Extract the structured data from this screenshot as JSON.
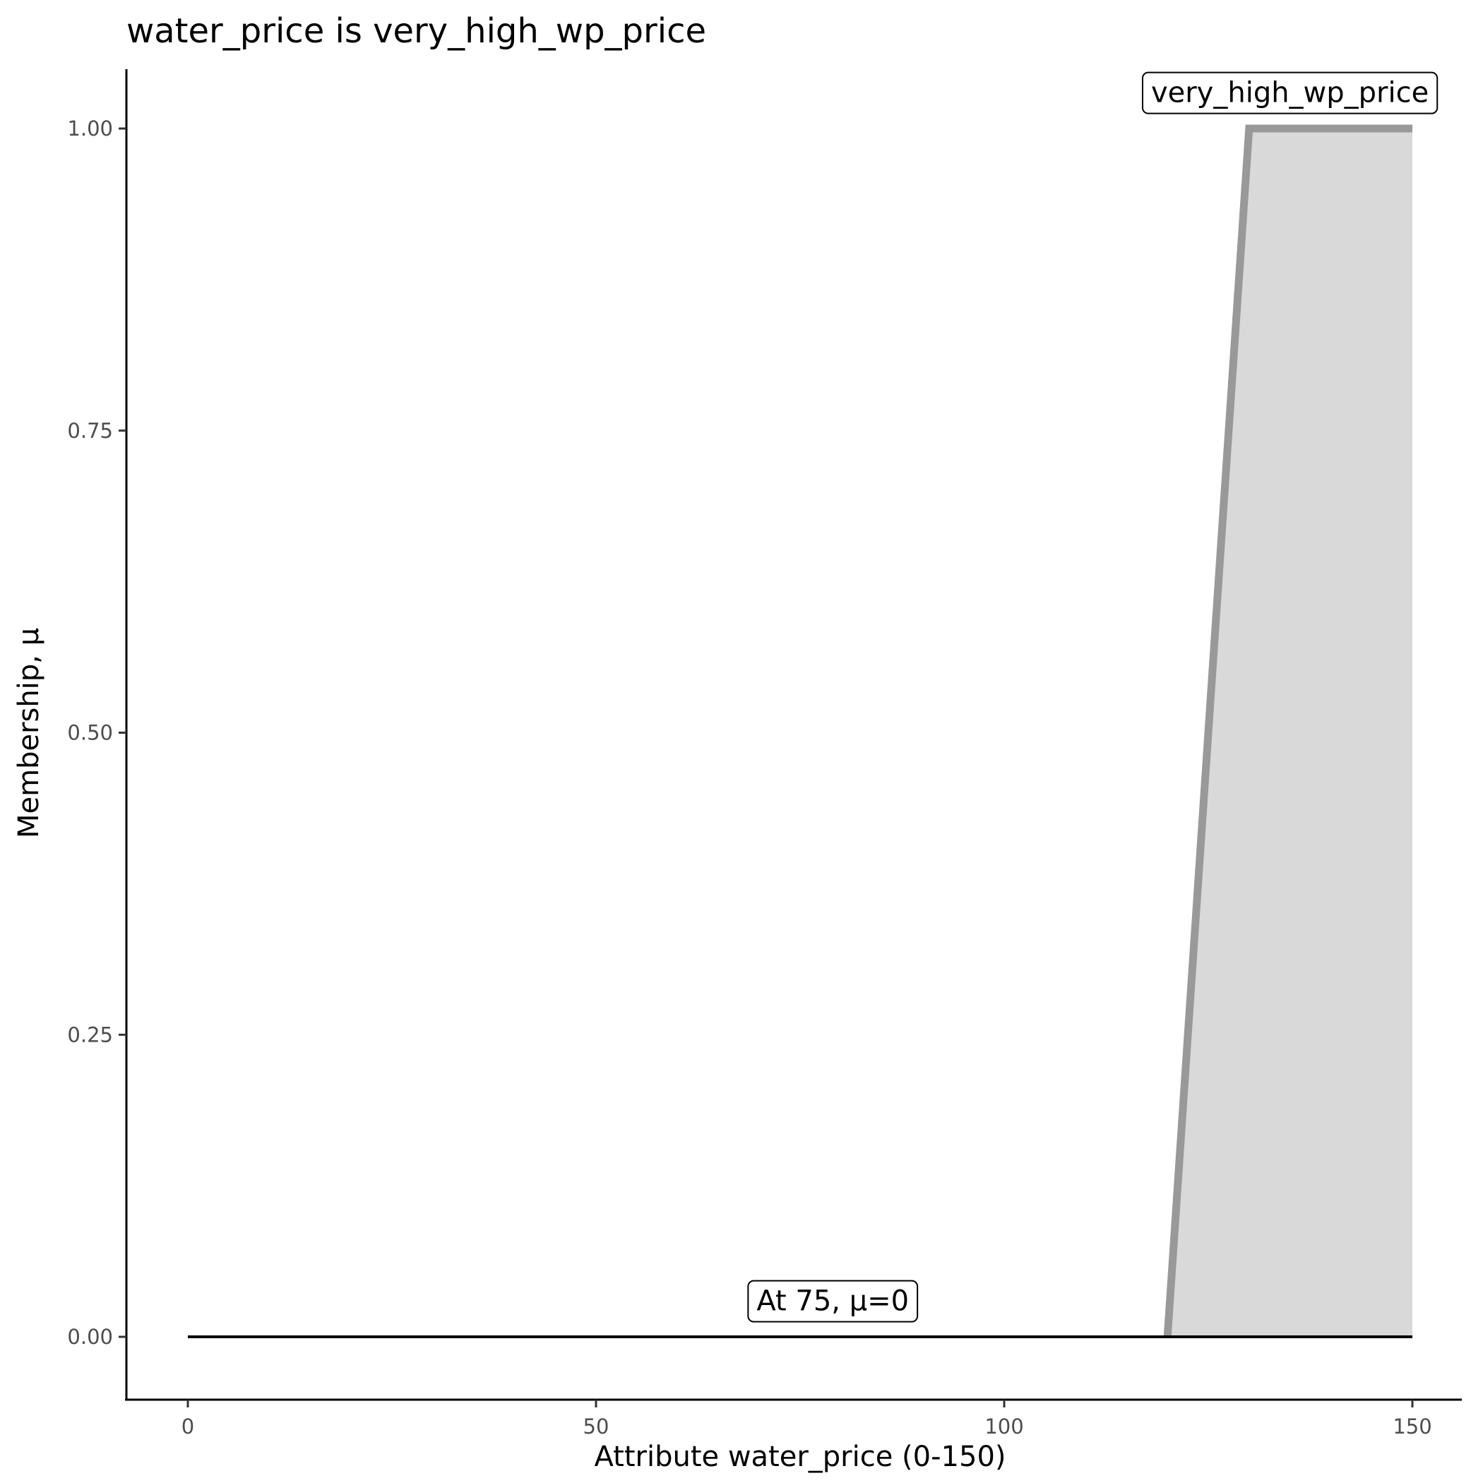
{
  "chart_data": {
    "type": "area",
    "title": "water_price is very_high_wp_price",
    "xlabel": "Attribute water_price (0-150)",
    "ylabel": "Membership, μ",
    "xlim": [
      -7.5,
      157.5
    ],
    "ylim": [
      -0.05,
      1.05
    ],
    "x_ticks": [
      "0",
      "50",
      "100",
      "150"
    ],
    "x_tick_values": [
      0,
      50,
      100,
      150
    ],
    "y_ticks": [
      "0.00",
      "0.25",
      "0.50",
      "0.75",
      "1.00"
    ],
    "y_tick_values": [
      0,
      0.25,
      0.5,
      0.75,
      1.0
    ],
    "grid": false,
    "series": [
      {
        "name": "very_high_wp_price",
        "x": [
          0,
          120,
          130,
          150
        ],
        "y": [
          0,
          0,
          1,
          1
        ],
        "fill": "#d9d9d9",
        "stroke": "#999999"
      }
    ],
    "evaluation_line": {
      "x": [
        0,
        150
      ],
      "y": [
        0,
        0
      ],
      "color": "#000000"
    },
    "annotations": [
      {
        "text": "very_high_wp_price",
        "x": 135,
        "y": 1.03
      },
      {
        "text": "At 75, μ=0",
        "x": 79,
        "y": 0.03
      }
    ]
  }
}
